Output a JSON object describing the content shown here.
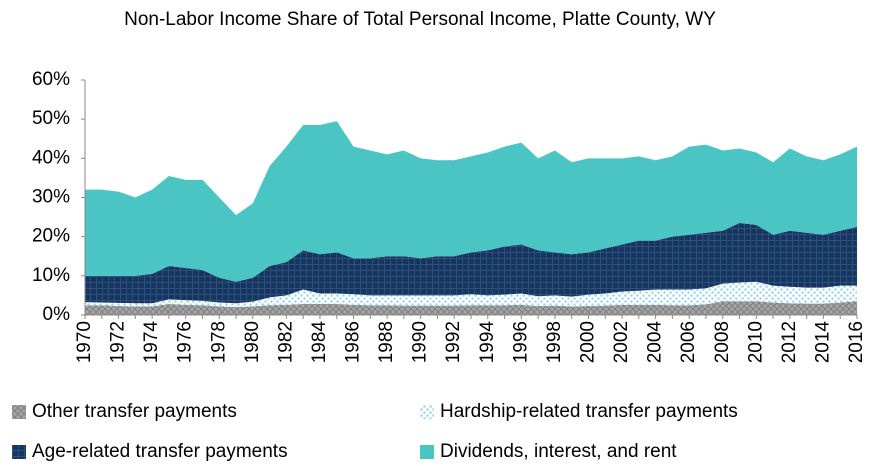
{
  "chart_data": {
    "type": "stacked-area",
    "title": "Non-Labor Income Share of Total Personal Income, Platte County, WY",
    "categories": [
      "1970",
      null,
      "1972",
      null,
      "1974",
      null,
      "1976",
      null,
      "1978",
      null,
      "1980",
      null,
      "1982",
      null,
      "1984",
      null,
      "1986",
      null,
      "1988",
      null,
      "1990",
      null,
      "1992",
      null,
      "1994",
      null,
      "1996",
      null,
      "1998",
      null,
      "2000",
      null,
      "2002",
      null,
      "2004",
      null,
      "2006",
      null,
      "2008",
      null,
      "2010",
      null,
      "2012",
      null,
      "2014",
      null,
      "2016"
    ],
    "ylim": [
      0,
      60
    ],
    "yticks": [
      {
        "value": 0,
        "label": "0%"
      },
      {
        "value": 10,
        "label": "10%"
      },
      {
        "value": 20,
        "label": "20%"
      },
      {
        "value": 30,
        "label": "30%"
      },
      {
        "value": 40,
        "label": "40%"
      },
      {
        "value": 50,
        "label": "50%"
      },
      {
        "value": 60,
        "label": "60%"
      }
    ],
    "legend": "bottom",
    "series": [
      {
        "name": "Other transfer payments",
        "color": "#a6a6a6",
        "pattern": "crosshatch",
        "values": [
          2.5,
          2.5,
          2.3,
          2.2,
          2.2,
          2.8,
          2.6,
          2.5,
          2.2,
          2.0,
          2.2,
          2.5,
          2.6,
          2.8,
          2.8,
          2.8,
          2.6,
          2.5,
          2.5,
          2.4,
          2.4,
          2.4,
          2.4,
          2.5,
          2.5,
          2.5,
          2.6,
          2.3,
          2.4,
          2.2,
          2.3,
          2.4,
          2.6,
          2.6,
          2.6,
          2.5,
          2.5,
          2.7,
          3.5,
          3.5,
          3.5,
          3.2,
          3.0,
          2.9,
          2.9,
          3.2,
          3.5
        ]
      },
      {
        "name": "Hardship-related transfer payments",
        "color": "#9fd9ef",
        "pattern": "dots",
        "values": [
          0.8,
          0.7,
          0.8,
          0.8,
          0.8,
          1.2,
          1.2,
          1.1,
          1.0,
          1.0,
          1.2,
          2.0,
          2.4,
          3.7,
          2.7,
          2.7,
          2.7,
          2.5,
          2.5,
          2.6,
          2.6,
          2.6,
          2.6,
          2.8,
          2.5,
          2.7,
          2.9,
          2.5,
          2.6,
          2.5,
          2.9,
          3.1,
          3.4,
          3.6,
          3.9,
          4.0,
          4.0,
          4.1,
          4.5,
          4.8,
          5.0,
          4.3,
          4.2,
          4.1,
          4.1,
          4.3,
          4.0
        ]
      },
      {
        "name": "Age-related transfer payments",
        "color": "#17365d",
        "pattern": "grid",
        "values": [
          6.7,
          6.8,
          6.9,
          7.0,
          7.5,
          8.5,
          8.2,
          7.9,
          6.3,
          5.5,
          6.1,
          8.0,
          8.5,
          10.0,
          10.0,
          10.5,
          9.2,
          9.5,
          10.0,
          10.0,
          9.5,
          10.0,
          10.0,
          10.7,
          11.5,
          12.3,
          12.5,
          11.7,
          11.0,
          10.8,
          10.8,
          11.5,
          12.0,
          12.8,
          12.5,
          13.5,
          14.0,
          14.2,
          13.5,
          15.2,
          14.5,
          13.0,
          14.3,
          14.0,
          13.5,
          14.0,
          15.0
        ]
      },
      {
        "name": "Dividends, interest, and rent",
        "color": "#4bc4c4",
        "pattern": "solid",
        "values": [
          22,
          22,
          21.5,
          20,
          21.5,
          23,
          22.5,
          23,
          20.5,
          17,
          19,
          25.5,
          29.5,
          32,
          33,
          33.5,
          28.5,
          27.5,
          26,
          27,
          25.5,
          24.5,
          24.5,
          24.5,
          25,
          25.5,
          26,
          23.5,
          26,
          23.5,
          24,
          23,
          22,
          21.5,
          20.5,
          20.5,
          22.5,
          22.5,
          20.5,
          19,
          18.5,
          18.5,
          21,
          19.5,
          19,
          19.5,
          20.5
        ]
      }
    ]
  }
}
